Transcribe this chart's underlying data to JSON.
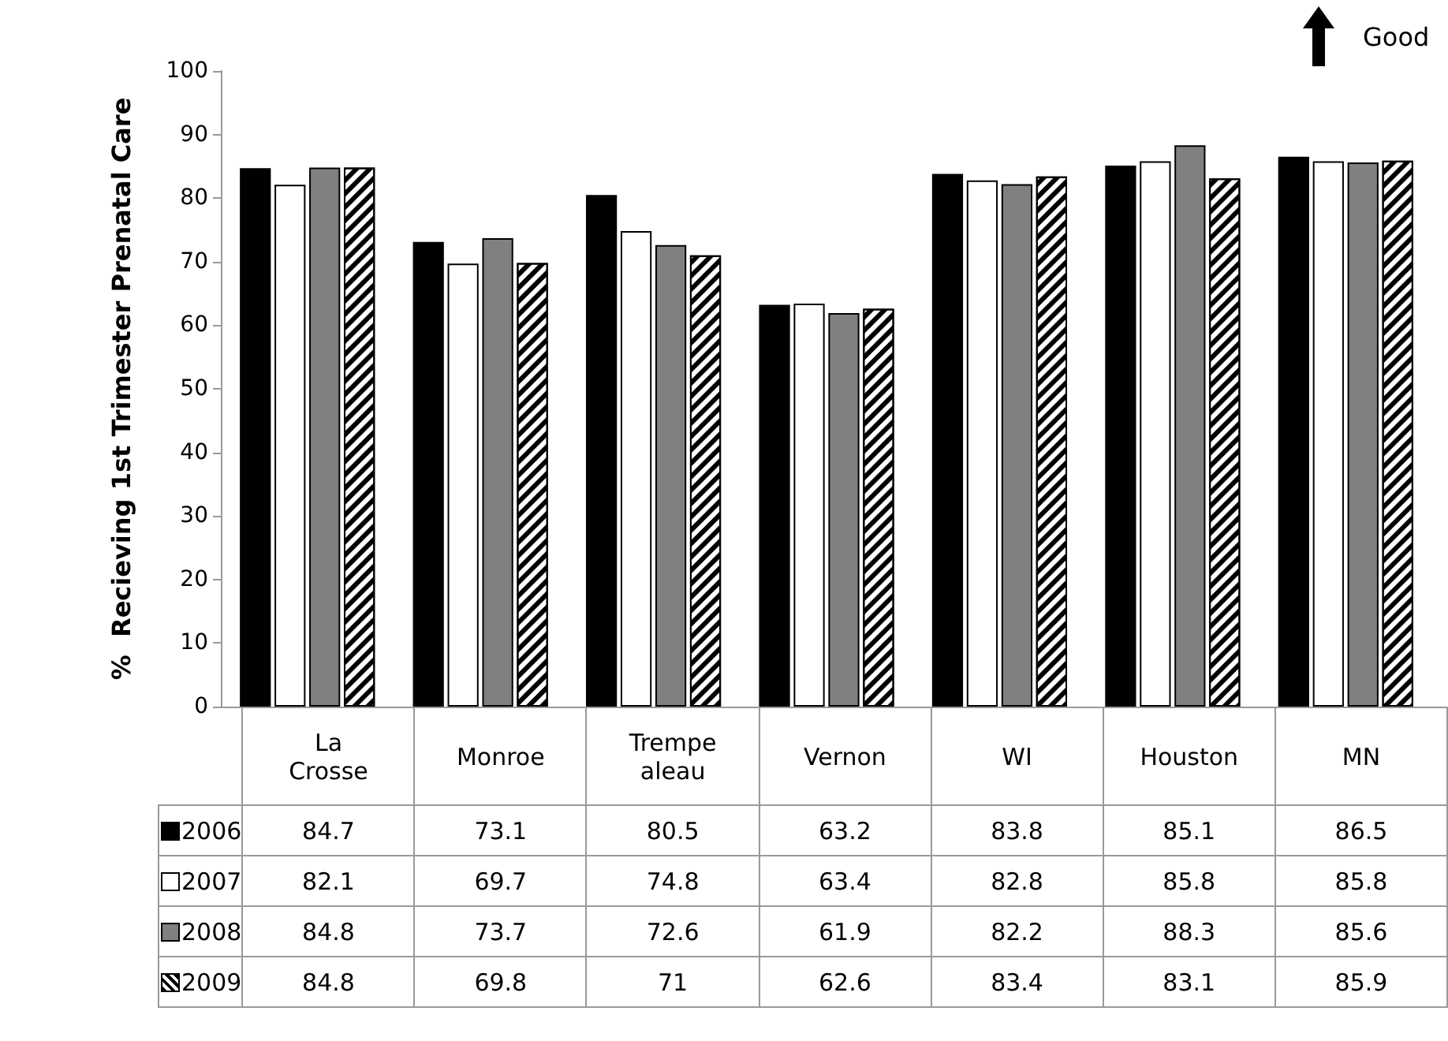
{
  "chart_data": {
    "type": "bar",
    "ylabel": "%  Recieving 1st Trimester Prenatal Care",
    "categories": [
      "La Crosse",
      "Monroe",
      "Trempe aleau",
      "Vernon",
      "WI",
      "Houston",
      "MN"
    ],
    "series": [
      {
        "name": "2006",
        "color": "#000000",
        "values": [
          84.7,
          73.1,
          80.5,
          63.2,
          83.8,
          85.1,
          86.5
        ]
      },
      {
        "name": "2007",
        "color": "#ffffff",
        "values": [
          82.1,
          69.7,
          74.8,
          63.4,
          82.8,
          85.8,
          85.8
        ]
      },
      {
        "name": "2008",
        "color": "#808080",
        "values": [
          84.8,
          73.7,
          72.6,
          61.9,
          82.2,
          88.3,
          85.6
        ]
      },
      {
        "name": "2009",
        "color": "#ffffff",
        "values": [
          84.8,
          69.8,
          71,
          62.6,
          83.4,
          83.1,
          85.9
        ]
      }
    ],
    "ylim": [
      0,
      100
    ],
    "yticks": [
      0,
      10,
      20,
      30,
      40,
      50,
      60,
      70,
      80,
      90,
      100
    ],
    "grid": false,
    "legend": "bottom",
    "data_labels": true,
    "annotations": [
      "Good"
    ]
  }
}
